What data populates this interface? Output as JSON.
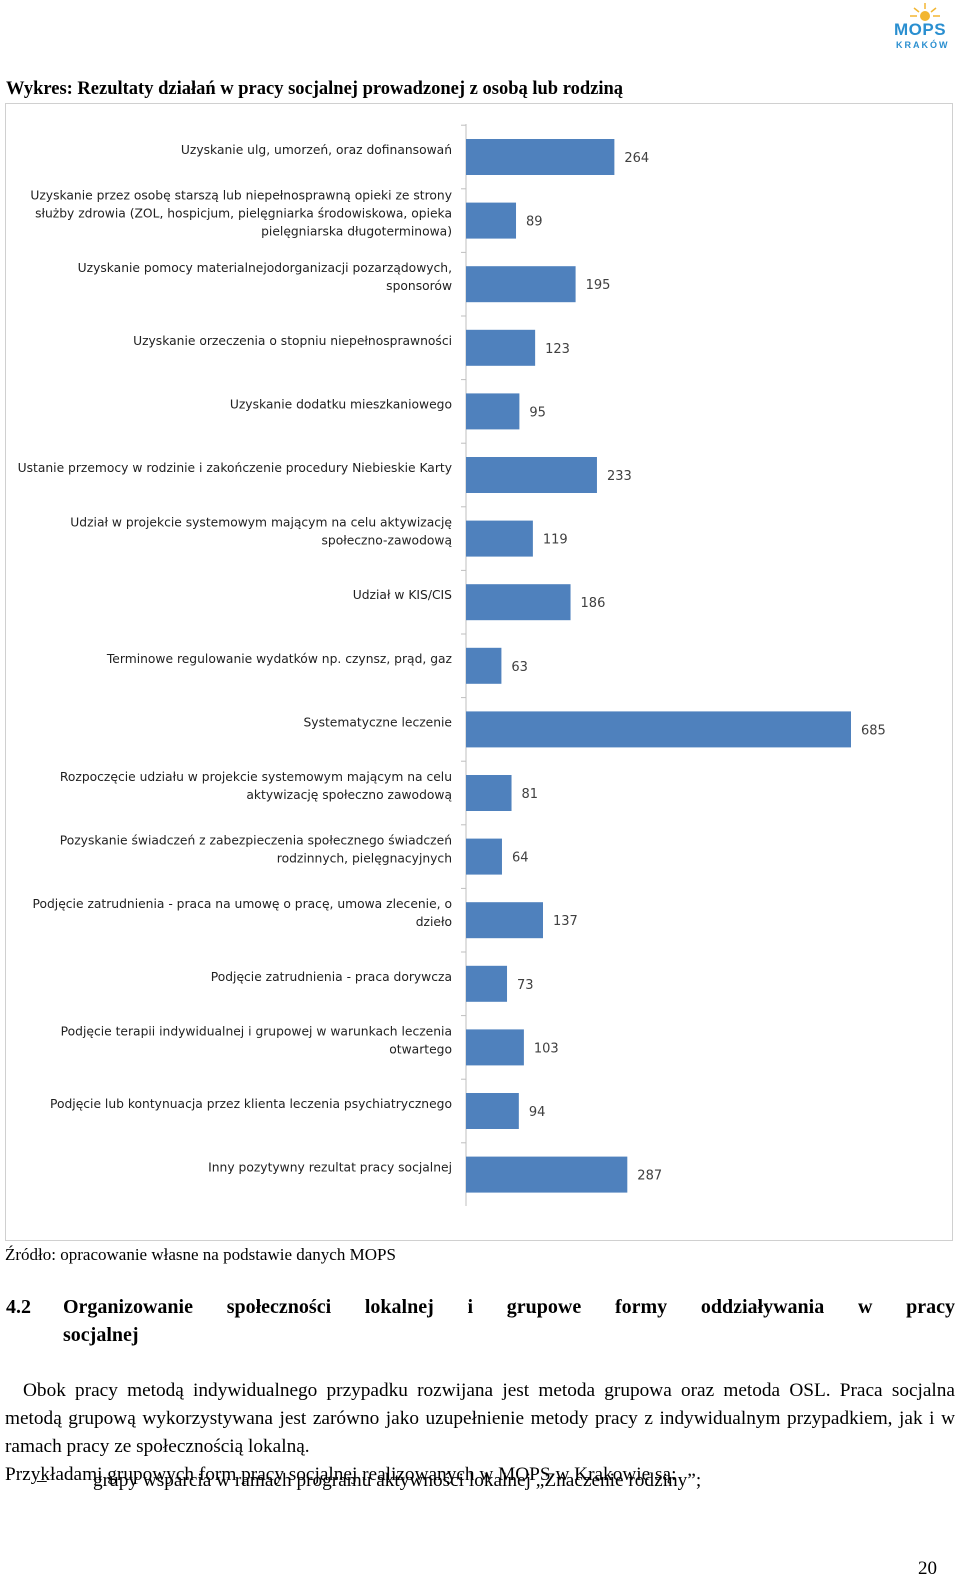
{
  "logo": {
    "text": "MOPS",
    "subtext": "KRAKÓW"
  },
  "chart_title": "Wykres: Rezultaty działań w pracy socjalnej prowadzonej z osobą lub rodziną",
  "chart_data": {
    "type": "bar",
    "orientation": "horizontal",
    "categories": [
      [
        "Uzyskanie ulg, umorzeń, oraz dofinansowań"
      ],
      [
        "Uzyskanie przez osobę starszą lub niepełnosprawną opieki ze strony",
        "służby zdrowia (ZOL, hospicjum, pielęgniarka środowiskowa, opieka",
        "pielęgniarska długoterminowa)"
      ],
      [
        "Uzyskanie pomocy materialnejodorganizacji pozarządowych,",
        "sponsorów"
      ],
      [
        "Uzyskanie orzeczenia o stopniu niepełnosprawności"
      ],
      [
        "Uzyskanie dodatku mieszkaniowego"
      ],
      [
        "Ustanie przemocy w rodzinie i zakończenie procedury Niebieskie Karty"
      ],
      [
        "Udział w projekcie systemowym mającym na celu aktywizację",
        "społeczno-zawodową"
      ],
      [
        "Udział w KIS/CIS"
      ],
      [
        "Terminowe regulowanie wydatków np. czynsz, prąd, gaz"
      ],
      [
        "Systematyczne leczenie"
      ],
      [
        "Rozpoczęcie udziału w projekcie systemowym mającym na celu",
        "aktywizację społeczno zawodową"
      ],
      [
        "Pozyskanie świadczeń z zabezpieczenia społecznego  świadczeń",
        "rodzinnych, pielęgnacyjnych"
      ],
      [
        "Podjęcie zatrudnienia - praca na umowę o pracę, umowa zlecenie, o",
        "dzieło"
      ],
      [
        "Podjęcie zatrudnienia - praca dorywcza"
      ],
      [
        "Podjęcie terapii indywidualnej i grupowej w warunkach leczenia",
        "otwartego"
      ],
      [
        "Podjęcie lub kontynuacja przez klienta leczenia psychiatrycznego"
      ],
      [
        "Inny pozytywny rezultat pracy socjalnej"
      ]
    ],
    "values": [
      264,
      89,
      195,
      123,
      95,
      233,
      119,
      186,
      63,
      685,
      81,
      64,
      137,
      73,
      103,
      94,
      287
    ],
    "bar_color": "#4f81bd",
    "xlim": [
      0,
      700
    ],
    "grid": false,
    "legend": "none"
  },
  "source_note": "Źródło: opracowanie własne na podstawie danych MOPS",
  "section": {
    "number": "4.2",
    "title_line1": "Organizowanie społeczności lokalnej i grupowe formy oddziaływania w pracy",
    "title_line2": "socjalnej"
  },
  "body": {
    "paragraph1": "Obok pracy metodą indywidualnego przypadku rozwijana jest metoda grupowa oraz metoda OSL. Praca socjalna metodą grupową wykorzystywana jest zarówno jako uzupełnienie metody pracy z indywidualnym przypadkiem, jak i w ramach pracy ze społecznością lokalną.",
    "paragraph2": "Przykładami  grupowych form pracy socjalnej realizowanych w MOPS w Krakowie są:",
    "list_dash": "–",
    "list_item1": "grupy wsparcia w ramach programu aktywności lokalnej „Znaczenie rodziny”;"
  },
  "page_number": "20"
}
